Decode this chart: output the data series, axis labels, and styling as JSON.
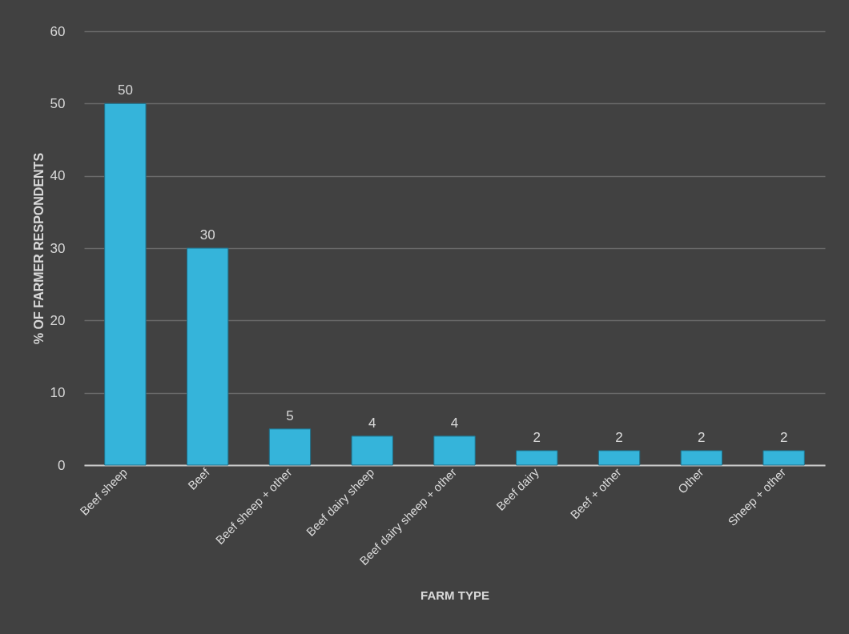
{
  "chart_data": {
    "type": "bar",
    "xlabel": "FARM TYPE",
    "ylabel": "% OF FARMER RESPONDENTS",
    "categories": [
      "Beef sheep",
      "Beef",
      "Beef sheep + other",
      "Beef dairy sheep",
      "Beef dairy sheep + other",
      "Beef dairy",
      "Beef + other",
      "Other",
      "Sheep + other"
    ],
    "values": [
      50,
      30,
      5,
      4,
      4,
      2,
      2,
      2,
      2
    ],
    "color": "#35b4da",
    "ylim": [
      0,
      60
    ],
    "yticks": [
      0,
      10,
      20,
      30,
      40,
      50,
      60
    ],
    "grid": "y",
    "data_labels": true
  }
}
